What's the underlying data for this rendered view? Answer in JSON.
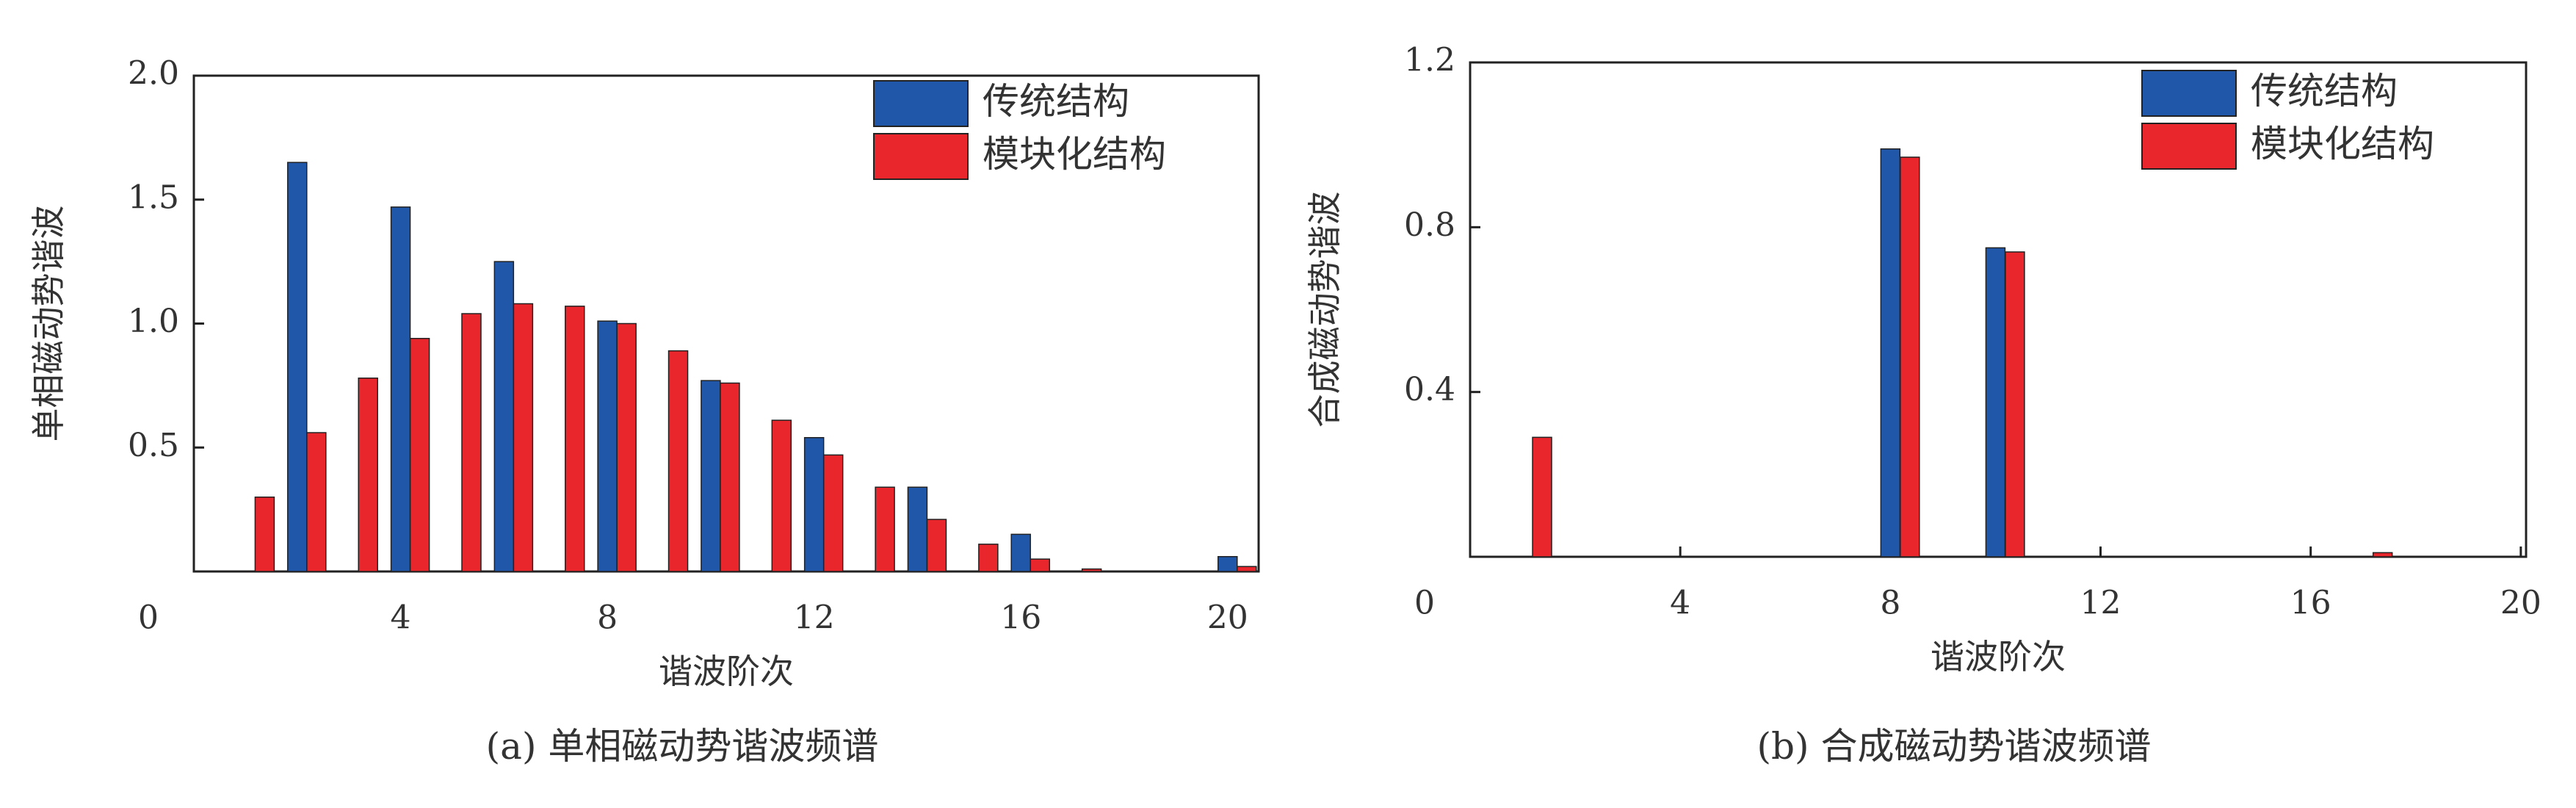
{
  "chart_data": [
    {
      "type": "bar",
      "title": "(a) 单相磁动势谐波频谱",
      "x_label": "谐波阶次",
      "y_label": "单相磁动势谐波",
      "x": [
        1,
        2,
        3,
        4,
        5,
        6,
        7,
        8,
        9,
        10,
        11,
        12,
        13,
        14,
        15,
        16,
        17,
        18,
        19,
        20
      ],
      "series": [
        {
          "name": "传统结构",
          "color": "#2157a8",
          "values": [
            0,
            1.65,
            0,
            1.47,
            0,
            1.25,
            0,
            1.01,
            0,
            0.77,
            0,
            0.54,
            0,
            0.34,
            0,
            0.15,
            0,
            0,
            0,
            0.06
          ]
        },
        {
          "name": "模块化结构",
          "color": "#e8262c",
          "values": [
            0.3,
            0.56,
            0.78,
            0.94,
            1.04,
            1.08,
            1.07,
            1.0,
            0.89,
            0.76,
            0.61,
            0.47,
            0.34,
            0.21,
            0.11,
            0.05,
            0.01,
            0,
            0,
            0.02
          ]
        }
      ],
      "xlim": [
        0,
        20.6
      ],
      "xticks": [
        0,
        4,
        8,
        12,
        16,
        20
      ],
      "ylim": [
        0,
        2.0
      ],
      "yticks": [
        0.5,
        {
          "value": 1.0,
          "label": "1.0"
        },
        1.5,
        {
          "value": 2.0,
          "label": "2.0"
        }
      ],
      "legend": "upper-right"
    },
    {
      "type": "bar",
      "title": "(b) 合成磁动势谐波频谱",
      "x_label": "谐波阶次",
      "y_label": "合成磁动势谐波",
      "x": [
        1,
        2,
        3,
        4,
        5,
        6,
        7,
        8,
        9,
        10,
        11,
        12,
        13,
        14,
        15,
        16,
        17,
        18,
        19,
        20
      ],
      "series": [
        {
          "name": "传统结构",
          "color": "#2157a8",
          "values": [
            0,
            0,
            0,
            0,
            0,
            0,
            0,
            0.99,
            0,
            0.75,
            0,
            0,
            0,
            0,
            0,
            0,
            0,
            0,
            0,
            0
          ]
        },
        {
          "name": "模块化结构",
          "color": "#e8262c",
          "values": [
            0.29,
            0,
            0,
            0,
            0,
            0,
            0,
            0.97,
            0,
            0.74,
            0,
            0,
            0,
            0,
            0,
            0,
            0.01,
            0,
            0,
            0
          ]
        }
      ],
      "xlim": [
        0,
        20.1
      ],
      "xticks": [
        0,
        4,
        8,
        12,
        16,
        20
      ],
      "ylim": [
        0,
        1.2
      ],
      "yticks": [
        0.4,
        0.8,
        1.2
      ],
      "legend": "upper-right"
    }
  ]
}
